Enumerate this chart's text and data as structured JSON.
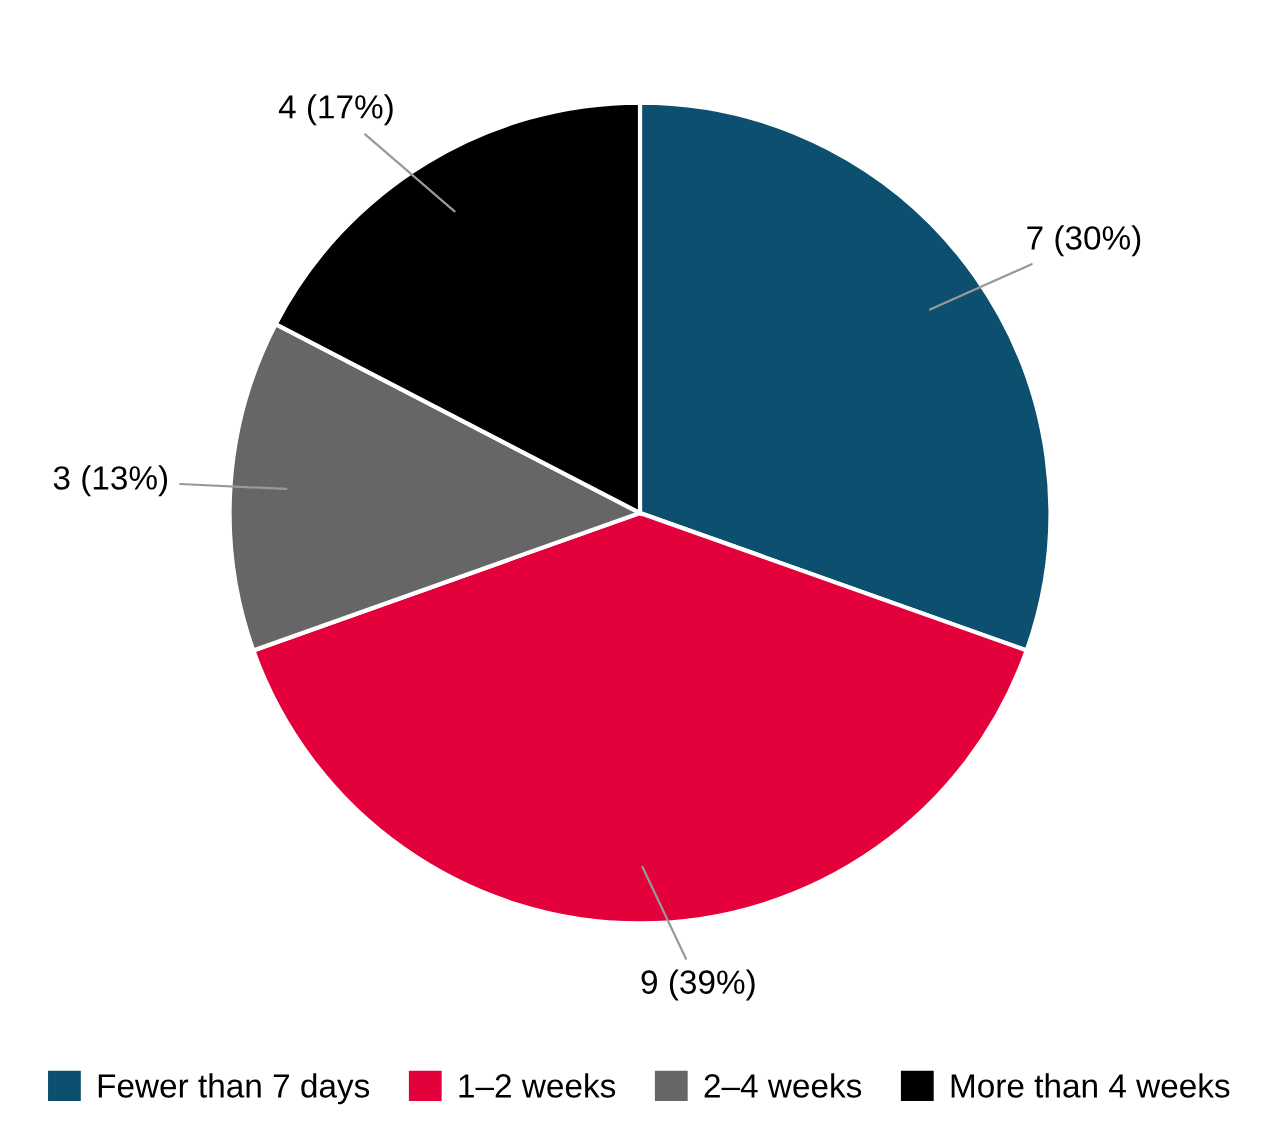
{
  "chart_data": {
    "type": "pie",
    "categories": [
      "Fewer than 7 days",
      "1–2 weeks",
      "2–4 weeks",
      "More than 4 weeks"
    ],
    "values": [
      7,
      9,
      3,
      4
    ],
    "colors": [
      "#0d4f6e",
      "#e4003b",
      "#666666",
      "#000000"
    ],
    "value_labels": [
      "7 (30%)",
      "9 (39%)",
      "3 (13%)",
      "4 (17%)"
    ],
    "legend": "bottom"
  }
}
